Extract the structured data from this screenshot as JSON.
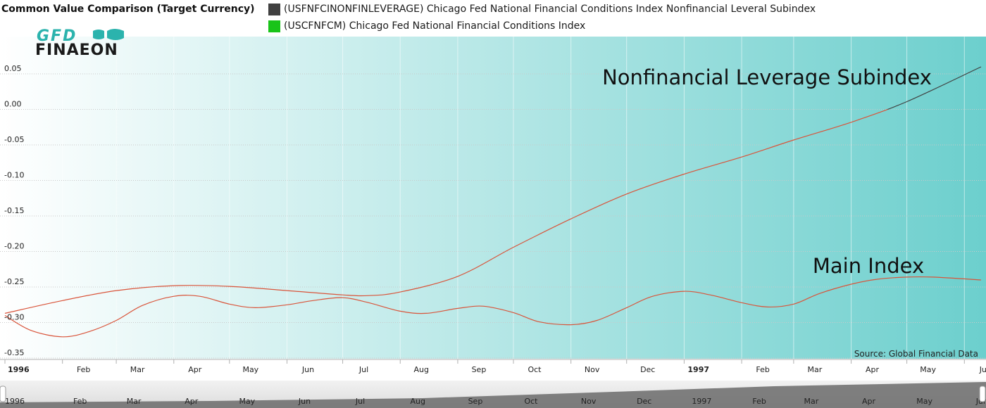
{
  "header": {
    "title": "Common Value Comparison (Target Currency)"
  },
  "legend": [
    {
      "label": "(USFNFCINONFINLEVERAGE) Chicago Fed National Financial Conditions Index Nonfinancial Leveral Subindex",
      "color": "#404040"
    },
    {
      "label": "(USCFNFCM) Chicago Fed National Financial Conditions Index",
      "color": "#19c419"
    }
  ],
  "logo": {
    "line1": "GFD",
    "line2": "FINAEON"
  },
  "source": "Source: Global Financial Data",
  "navigator": {
    "labels": [
      "1996",
      "Feb",
      "Mar",
      "Apr",
      "May",
      "Jun",
      "Jul",
      "Aug",
      "Sep",
      "Oct",
      "Nov",
      "Dec",
      "1997",
      "Feb",
      "Mar",
      "Apr",
      "May",
      "Jun"
    ]
  },
  "colors": {
    "line": "#d9543a",
    "upper_line": "#404040",
    "bg_start": "#ffffff",
    "bg_end": "#6ccfcd"
  },
  "chart_data": {
    "type": "line",
    "title": "Common Value Comparison (Target Currency)",
    "ylim": [
      -0.35,
      0.06
    ],
    "yticks": [
      0.05,
      0.0,
      -0.05,
      -0.1,
      -0.15,
      -0.2,
      -0.25,
      -0.3,
      -0.35
    ],
    "ytick_labels": [
      "0.05",
      "0.00",
      "-0.05",
      "-0.10",
      "-0.15",
      "-0.20",
      "-0.25",
      "-0.30",
      "-0.35"
    ],
    "xlim": [
      "1996-01-01",
      "1997-06-10"
    ],
    "xticks": [
      {
        "label": "1996",
        "date": "1996-01-01",
        "bold": true
      },
      {
        "label": "Feb",
        "date": "1996-02-01"
      },
      {
        "label": "Mar",
        "date": "1996-03-01"
      },
      {
        "label": "Apr",
        "date": "1996-04-01"
      },
      {
        "label": "May",
        "date": "1996-05-01"
      },
      {
        "label": "Jun",
        "date": "1996-06-01"
      },
      {
        "label": "Jul",
        "date": "1996-07-01"
      },
      {
        "label": "Aug",
        "date": "1996-08-01"
      },
      {
        "label": "Sep",
        "date": "1996-09-01"
      },
      {
        "label": "Oct",
        "date": "1996-10-01"
      },
      {
        "label": "Nov",
        "date": "1996-11-01"
      },
      {
        "label": "Dec",
        "date": "1996-12-01"
      },
      {
        "label": "1997",
        "date": "1997-01-01",
        "bold": true
      },
      {
        "label": "Feb",
        "date": "1997-02-01"
      },
      {
        "label": "Mar",
        "date": "1997-03-01"
      },
      {
        "label": "Apr",
        "date": "1997-04-01"
      },
      {
        "label": "May",
        "date": "1997-05-01"
      },
      {
        "label": "Jun",
        "date": "1997-06-01"
      }
    ],
    "grid": true,
    "series": [
      {
        "name": "(USFNFCINONFINLEVERAGE) Chicago Fed National Financial Conditions Index Nonfinancial Leveral Subindex",
        "x": [
          "1996-01-01",
          "1996-02-01",
          "1996-03-01",
          "1996-04-01",
          "1996-05-01",
          "1996-06-01",
          "1996-07-01",
          "1996-07-15",
          "1996-08-01",
          "1996-09-01",
          "1996-10-01",
          "1996-11-01",
          "1996-12-01",
          "1997-01-01",
          "1997-02-01",
          "1997-03-01",
          "1997-04-01",
          "1997-05-01",
          "1997-06-10"
        ],
        "values": [
          -0.294,
          -0.276,
          -0.262,
          -0.255,
          -0.256,
          -0.262,
          -0.268,
          -0.269,
          -0.264,
          -0.242,
          -0.201,
          -0.161,
          -0.126,
          -0.098,
          -0.074,
          -0.05,
          -0.025,
          0.004,
          0.053
        ]
      },
      {
        "name": "(USCFNFCM) Chicago Fed National Financial Conditions Index",
        "x": [
          "1996-01-01",
          "1996-01-15",
          "1996-02-01",
          "1996-02-15",
          "1996-03-01",
          "1996-03-15",
          "1996-04-01",
          "1996-04-15",
          "1996-05-01",
          "1996-05-15",
          "1996-06-01",
          "1996-06-15",
          "1996-07-01",
          "1996-07-15",
          "1996-08-01",
          "1996-08-15",
          "1996-09-01",
          "1996-09-15",
          "1996-10-01",
          "1996-10-15",
          "1996-11-01",
          "1996-11-15",
          "1996-12-01",
          "1996-12-15",
          "1997-01-01",
          "1997-01-15",
          "1997-02-01",
          "1997-02-15",
          "1997-03-01",
          "1997-03-15",
          "1997-04-01",
          "1997-04-15",
          "1997-05-01",
          "1997-05-15",
          "1997-06-10"
        ],
        "values": [
          -0.297,
          -0.318,
          -0.327,
          -0.32,
          -0.304,
          -0.283,
          -0.27,
          -0.27,
          -0.281,
          -0.286,
          -0.282,
          -0.276,
          -0.272,
          -0.279,
          -0.291,
          -0.294,
          -0.287,
          -0.284,
          -0.293,
          -0.306,
          -0.31,
          -0.304,
          -0.286,
          -0.27,
          -0.263,
          -0.268,
          -0.279,
          -0.285,
          -0.281,
          -0.266,
          -0.253,
          -0.246,
          -0.243,
          -0.243,
          -0.247
        ]
      }
    ],
    "annotations": [
      {
        "text": "Nonfinancial Leverage Subindex"
      },
      {
        "text": "Main Index"
      }
    ],
    "source": "Source: Global Financial Data"
  }
}
